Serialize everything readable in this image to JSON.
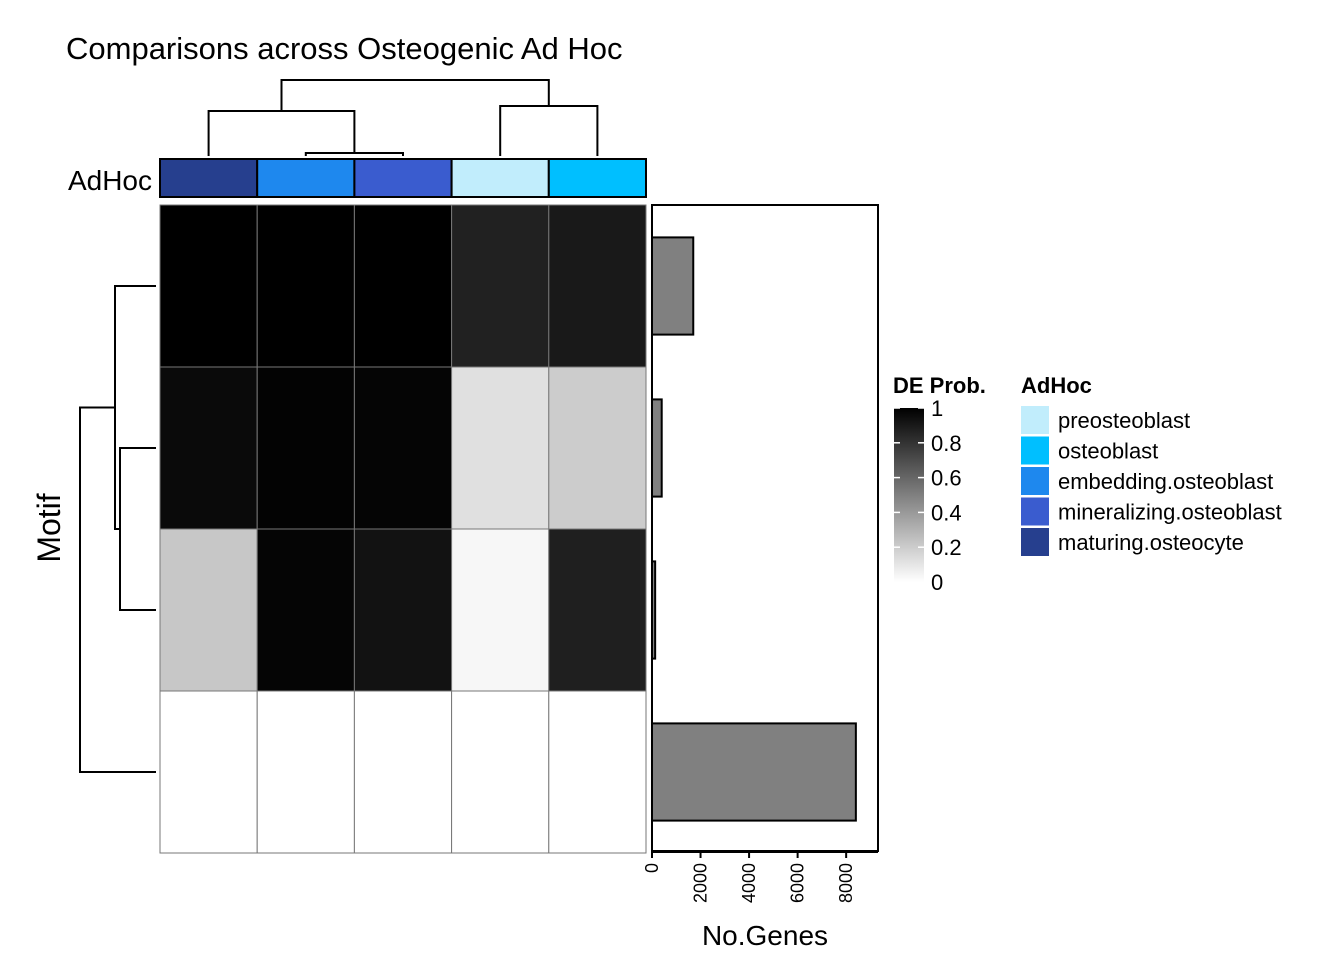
{
  "chart_data": {
    "type": "heatmap",
    "title": "Comparisons across Osteogenic Ad Hoc",
    "ylabel": "Motif",
    "column_annotation": {
      "label": "AdHoc",
      "columns": [
        "maturing.osteocyte",
        "embedding.osteoblast",
        "mineralizing.osteoblast",
        "preosteoblast",
        "osteoblast"
      ]
    },
    "color_scale": {
      "title": "DE Prob.",
      "low": "#ffffff",
      "high": "#000000",
      "ticks": [
        "0",
        "0.2",
        "0.4",
        "0.6",
        "0.8",
        "1"
      ],
      "tick_values": [
        0,
        0.2,
        0.4,
        0.6,
        0.8,
        1
      ]
    },
    "values": [
      [
        1.0,
        1.0,
        1.0,
        0.87,
        0.9
      ],
      [
        0.96,
        0.99,
        0.98,
        0.12,
        0.2
      ],
      [
        0.22,
        0.98,
        0.93,
        0.03,
        0.88
      ],
      [
        0.0,
        0.0,
        0.0,
        0.0,
        0.0
      ]
    ],
    "row_dendrogram": "((1,(2,3)),4)",
    "column_dendrogram": "((1,(2,3)),(4,5))",
    "side_bar": {
      "xlabel": "No.Genes",
      "values": [
        1700,
        400,
        130,
        8400
      ],
      "xlim": [
        0,
        8900
      ],
      "ticks": [
        "0",
        "2000",
        "4000",
        "6000",
        "8000"
      ],
      "tick_values": [
        0,
        2000,
        4000,
        6000,
        8000
      ],
      "color": "#808080"
    },
    "legend": {
      "title": "AdHoc",
      "position": "right",
      "items": [
        {
          "label": "preosteoblast",
          "color": "#c1edfc"
        },
        {
          "label": "osteoblast",
          "color": "#00bfff"
        },
        {
          "label": "embedding.osteoblast",
          "color": "#1e88ee"
        },
        {
          "label": "mineralizing.osteoblast",
          "color": "#3a5ccf"
        },
        {
          "label": "maturing.osteocyte",
          "color": "#263f8e"
        }
      ]
    }
  }
}
